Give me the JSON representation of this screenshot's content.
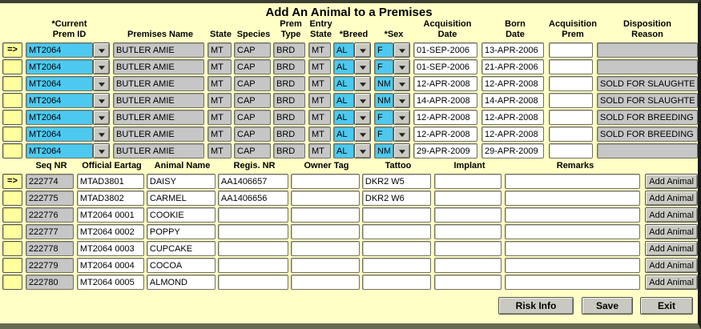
{
  "title": "Add An Animal to a Premises",
  "row_indicator": "=>",
  "colors": {
    "background": "#FFFFC6",
    "selector_yellow": "#FFFF9E",
    "editable_cyan": "#4DC9F0",
    "readonly_gray": "#C6C6C6",
    "field_white": "#FFFFFF"
  },
  "premises_table": {
    "headers": [
      {
        "line1": "*Current",
        "line2": "Prem ID"
      },
      {
        "line1": "",
        "line2": "Premises Name"
      },
      {
        "line1": "",
        "line2": "State"
      },
      {
        "line1": "",
        "line2": "Species"
      },
      {
        "line1": "Prem",
        "line2": "Type"
      },
      {
        "line1": "Entry",
        "line2": "State"
      },
      {
        "line1": "",
        "line2": "*Breed"
      },
      {
        "line1": "",
        "line2": "*Sex"
      },
      {
        "line1": "Acquisition",
        "line2": "Date"
      },
      {
        "line1": "Born",
        "line2": "Date"
      },
      {
        "line1": "Acquisition",
        "line2": "Prem"
      },
      {
        "line1": "Disposition",
        "line2": "Reason"
      }
    ],
    "rows": [
      {
        "selected": true,
        "prem_id": "MT2064",
        "premises_name": "BUTLER AMIE",
        "state": "MT",
        "species": "CAP",
        "prem_type": "BRD",
        "entry_state": "MT",
        "breed": "AL",
        "sex": "F",
        "acq_date": "01-SEP-2006",
        "born_date": "13-APR-2006",
        "acq_prem": "",
        "disposition": ""
      },
      {
        "selected": false,
        "prem_id": "MT2064",
        "premises_name": "BUTLER AMIE",
        "state": "MT",
        "species": "CAP",
        "prem_type": "BRD",
        "entry_state": "MT",
        "breed": "AL",
        "sex": "F",
        "acq_date": "01-SEP-2006",
        "born_date": "21-APR-2006",
        "acq_prem": "",
        "disposition": ""
      },
      {
        "selected": false,
        "prem_id": "MT2064",
        "premises_name": "BUTLER AMIE",
        "state": "MT",
        "species": "CAP",
        "prem_type": "BRD",
        "entry_state": "MT",
        "breed": "AL",
        "sex": "NM",
        "acq_date": "12-APR-2008",
        "born_date": "12-APR-2008",
        "acq_prem": "",
        "disposition": "SOLD FOR SLAUGHTER"
      },
      {
        "selected": false,
        "prem_id": "MT2064",
        "premises_name": "BUTLER AMIE",
        "state": "MT",
        "species": "CAP",
        "prem_type": "BRD",
        "entry_state": "MT",
        "breed": "AL",
        "sex": "NM",
        "acq_date": "14-APR-2008",
        "born_date": "14-APR-2008",
        "acq_prem": "",
        "disposition": "SOLD FOR SLAUGHTER"
      },
      {
        "selected": false,
        "prem_id": "MT2064",
        "premises_name": "BUTLER AMIE",
        "state": "MT",
        "species": "CAP",
        "prem_type": "BRD",
        "entry_state": "MT",
        "breed": "AL",
        "sex": "F",
        "acq_date": "12-APR-2008",
        "born_date": "12-APR-2008",
        "acq_prem": "",
        "disposition": "SOLD FOR BREEDING"
      },
      {
        "selected": false,
        "prem_id": "MT2064",
        "premises_name": "BUTLER AMIE",
        "state": "MT",
        "species": "CAP",
        "prem_type": "BRD",
        "entry_state": "MT",
        "breed": "AL",
        "sex": "F",
        "acq_date": "12-APR-2008",
        "born_date": "12-APR-2008",
        "acq_prem": "",
        "disposition": "SOLD FOR BREEDING"
      },
      {
        "selected": false,
        "prem_id": "MT2064",
        "premises_name": "BUTLER AMIE",
        "state": "MT",
        "species": "CAP",
        "prem_type": "BRD",
        "entry_state": "MT",
        "breed": "AL",
        "sex": "NM",
        "acq_date": "29-APR-2009",
        "born_date": "29-APR-2009",
        "acq_prem": "",
        "disposition": ""
      }
    ]
  },
  "animals_table": {
    "headers": [
      "Seq NR",
      "Official Eartag",
      "Animal Name",
      "Regis. NR",
      "Owner Tag",
      "Tattoo",
      "Implant",
      "Remarks"
    ],
    "add_button_label": "Add Animal",
    "rows": [
      {
        "selected": true,
        "seq": "222774",
        "eartag": "MTAD3801",
        "name": "DAISY",
        "regis": "AA1406657",
        "owner": "",
        "tattoo": "DKR2 W5",
        "implant": "",
        "remarks": ""
      },
      {
        "selected": false,
        "seq": "222775",
        "eartag": "MTAD3802",
        "name": "CARMEL",
        "regis": "AA1406656",
        "owner": "",
        "tattoo": "DKR2 W6",
        "implant": "",
        "remarks": ""
      },
      {
        "selected": false,
        "seq": "222776",
        "eartag": "MT2064 0001",
        "name": "COOKIE",
        "regis": "",
        "owner": "",
        "tattoo": "",
        "implant": "",
        "remarks": ""
      },
      {
        "selected": false,
        "seq": "222777",
        "eartag": "MT2064 0002",
        "name": "POPPY",
        "regis": "",
        "owner": "",
        "tattoo": "",
        "implant": "",
        "remarks": ""
      },
      {
        "selected": false,
        "seq": "222778",
        "eartag": "MT2064 0003",
        "name": "CUPCAKE",
        "regis": "",
        "owner": "",
        "tattoo": "",
        "implant": "",
        "remarks": ""
      },
      {
        "selected": false,
        "seq": "222779",
        "eartag": "MT2064 0004",
        "name": "COCOA",
        "regis": "",
        "owner": "",
        "tattoo": "",
        "implant": "",
        "remarks": ""
      },
      {
        "selected": false,
        "seq": "222780",
        "eartag": "MT2064 0005",
        "name": "ALMOND",
        "regis": "",
        "owner": "",
        "tattoo": "",
        "implant": "",
        "remarks": ""
      }
    ]
  },
  "footer": {
    "risk_info_label": "Risk Info",
    "save_label": "Save",
    "exit_label": "Exit"
  }
}
